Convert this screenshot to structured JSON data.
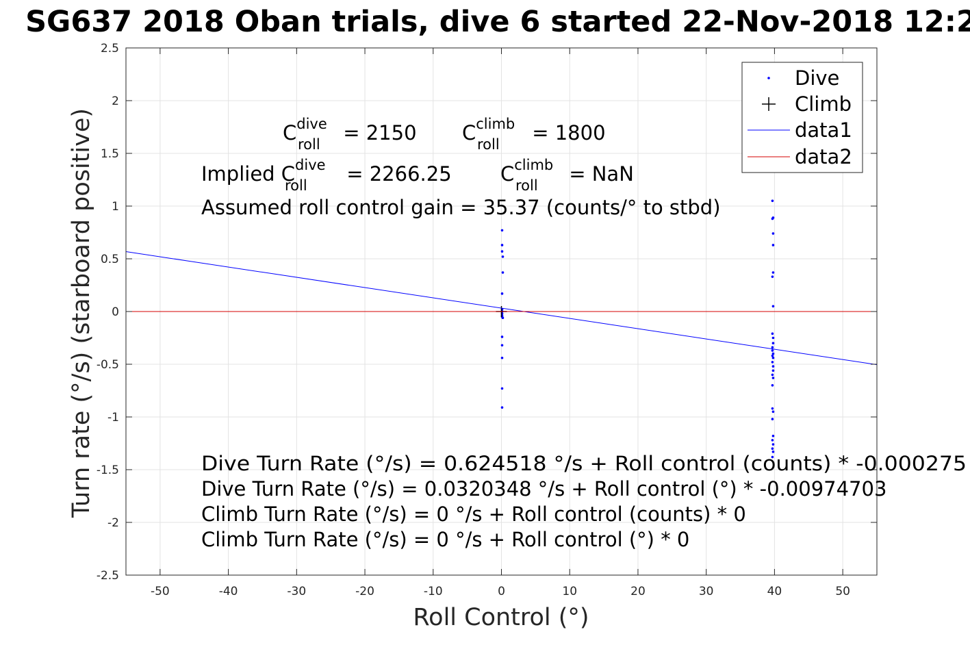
{
  "chart_data": {
    "type": "scatter",
    "title": "SG637 2018 Oban trials, dive 6 started 22-Nov-2018 12:2",
    "xlabel": "Roll Control (°)",
    "ylabel": "Turn rate (°/s) (starboard positive)",
    "xlim": [
      -55,
      55
    ],
    "ylim": [
      -2.5,
      2.5
    ],
    "xticks": [
      -50,
      -40,
      -30,
      -20,
      -10,
      0,
      10,
      20,
      30,
      40,
      50
    ],
    "yticks": [
      -2.5,
      -2,
      -1.5,
      -1,
      -0.5,
      0,
      0.5,
      1,
      1.5,
      2,
      2.5
    ],
    "xtick_labels": [
      "-50",
      "-40",
      "-30",
      "-20",
      "-10",
      "0",
      "10",
      "20",
      "30",
      "40",
      "50"
    ],
    "ytick_labels": [
      "-2.5",
      "-2",
      "-1.5",
      "-1",
      "-0.5",
      "0",
      "0.5",
      "1",
      "1.5",
      "2",
      "2.5"
    ],
    "grid": true,
    "legend_position": "top-right",
    "series": [
      {
        "name": "Dive",
        "kind": "points",
        "color": "#0000ff",
        "x": [
          0.1,
          0.1,
          0.1,
          0.2,
          0.2,
          0.1,
          0.1,
          0.1,
          0.1,
          0.2,
          0.1,
          0.1,
          0.1,
          0.1,
          0.1,
          0.1,
          0.1,
          39.7,
          39.8,
          39.7,
          39.8,
          39.8,
          39.8,
          39.7,
          39.8,
          39.7,
          39.8,
          39.8,
          39.7,
          39.7,
          39.8,
          39.7,
          39.8,
          39.7,
          39.8,
          39.8,
          39.7,
          39.8,
          39.7,
          39.7,
          39.8,
          39.7,
          39.8,
          39.7,
          39.8,
          39.7,
          39.8,
          39.7
        ],
        "y": [
          0.77,
          0.63,
          0.57,
          0.52,
          0.37,
          0.17,
          0.02,
          -0.02,
          -0.04,
          -0.06,
          -0.24,
          -0.32,
          -0.44,
          -0.73,
          -0.91,
          0.0,
          -0.05,
          1.05,
          0.89,
          0.88,
          0.74,
          0.63,
          0.37,
          0.33,
          0.05,
          -0.21,
          -0.25,
          -0.3,
          -0.34,
          -0.37,
          -0.4,
          -0.42,
          -0.44,
          -0.48,
          -0.52,
          -0.56,
          -0.6,
          -0.63,
          -0.7,
          -0.92,
          -0.95,
          -1.02,
          -1.18,
          -1.22,
          -1.26,
          -1.3,
          -1.33,
          -1.38
        ]
      },
      {
        "name": "Climb",
        "kind": "plus",
        "color": "#000000",
        "x": [
          0.0
        ],
        "y": [
          0.0
        ]
      },
      {
        "name": "data1",
        "kind": "line",
        "color": "#0000ff",
        "x": [
          -55,
          55
        ],
        "y": [
          0.568,
          -0.504
        ]
      },
      {
        "name": "data2",
        "kind": "line",
        "color": "#d40000",
        "x": [
          -55,
          55
        ],
        "y": [
          0,
          0
        ]
      }
    ],
    "annotations": {
      "c_dive_label": "C",
      "c_dive_sup": "dive",
      "c_dive_sub": "roll",
      "c_dive_value": " = 2150",
      "c_climb_label": "C",
      "c_climb_sup": "climb",
      "c_climb_sub": "roll",
      "c_climb_value": " = 1800",
      "implied_prefix": "Implied C",
      "implied_dive_sup": "dive",
      "implied_dive_sub": "roll",
      "implied_dive_value": " = 2266.25",
      "implied_climb_label": "C",
      "implied_climb_sup": "climb",
      "implied_climb_sub": "roll",
      "implied_climb_value": " = NaN",
      "gain_line": "Assumed roll control gain = 35.37 (counts/° to stbd)",
      "eq1": "Dive Turn Rate (°/s) = 0.624518 °/s + Roll control (counts) * -0.000275",
      "eq2": "Dive Turn Rate (°/s) = 0.0320348 °/s + Roll control (°) * -0.00974703",
      "eq3": "Climb Turn Rate (°/s) = 0 °/s + Roll control (counts) * 0",
      "eq4": "Climb Turn Rate (°/s) = 0 °/s + Roll control (°) * 0"
    }
  }
}
